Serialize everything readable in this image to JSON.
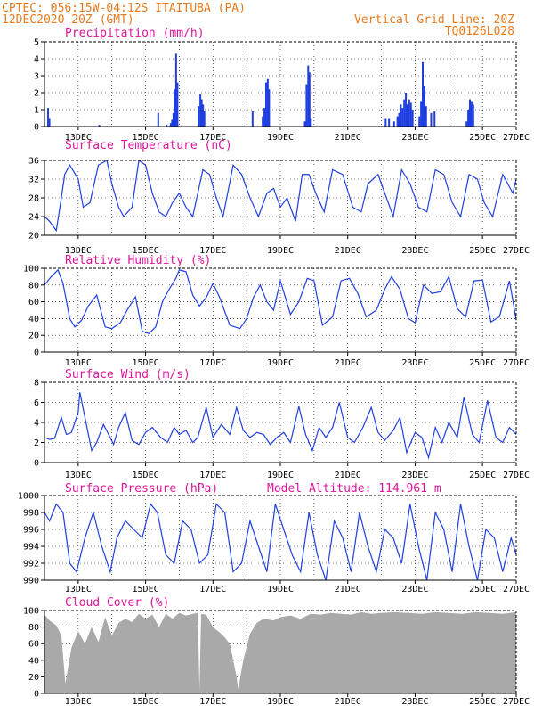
{
  "header": {
    "line1": "CPTEC:   056:15W-04:12S  ITAITUBA (PA)",
    "line2": "12DEC2020 20Z (GMT)",
    "grid_note": "Vertical Grid Line: 20Z",
    "code": "TQ0126L028"
  },
  "x_day_labels": [
    "13DEC",
    "15DEC",
    "17DEC",
    "19DEC",
    "21DEC",
    "23DEC",
    "25DEC",
    "27DEC"
  ],
  "chart_data": [
    {
      "type": "bar",
      "title": "Precipitation (mm/h)",
      "ylim": [
        0,
        5
      ],
      "yticks": [
        0,
        1,
        2,
        3,
        4,
        5
      ],
      "x_unit": "days since 12DEC2020 20Z",
      "bars": [
        [
          0.08,
          1.1
        ],
        [
          0.12,
          0.5
        ],
        [
          1.6,
          0.1
        ],
        [
          3.35,
          0.8
        ],
        [
          3.6,
          0.1
        ],
        [
          3.72,
          0.2
        ],
        [
          3.76,
          0.4
        ],
        [
          3.8,
          0.8
        ],
        [
          3.84,
          2.2
        ],
        [
          3.88,
          4.3
        ],
        [
          3.92,
          2.6
        ],
        [
          4.55,
          1.2
        ],
        [
          4.6,
          1.9
        ],
        [
          4.64,
          1.6
        ],
        [
          4.68,
          1.3
        ],
        [
          4.72,
          0.9
        ],
        [
          6.15,
          0.9
        ],
        [
          6.45,
          0.6
        ],
        [
          6.5,
          1.1
        ],
        [
          6.55,
          2.6
        ],
        [
          6.6,
          2.8
        ],
        [
          6.64,
          2.2
        ],
        [
          7.7,
          0.3
        ],
        [
          7.75,
          2.5
        ],
        [
          7.8,
          3.6
        ],
        [
          7.84,
          3.2
        ],
        [
          7.88,
          0.5
        ],
        [
          10.1,
          0.5
        ],
        [
          10.2,
          0.5
        ],
        [
          10.35,
          0.3
        ],
        [
          10.45,
          0.6
        ],
        [
          10.5,
          0.8
        ],
        [
          10.55,
          1.3
        ],
        [
          10.6,
          1.1
        ],
        [
          10.65,
          1.6
        ],
        [
          10.7,
          2.0
        ],
        [
          10.75,
          1.3
        ],
        [
          10.8,
          1.6
        ],
        [
          10.85,
          1.4
        ],
        [
          10.9,
          1.0
        ],
        [
          11.1,
          0.6
        ],
        [
          11.15,
          1.5
        ],
        [
          11.2,
          3.8
        ],
        [
          11.25,
          2.4
        ],
        [
          11.3,
          1.2
        ],
        [
          11.45,
          0.8
        ],
        [
          11.55,
          0.9
        ],
        [
          12.5,
          0.3
        ],
        [
          12.55,
          1.0
        ],
        [
          12.6,
          1.6
        ],
        [
          12.65,
          1.5
        ],
        [
          12.7,
          1.3
        ]
      ]
    },
    {
      "type": "line",
      "title": "Surface Temperature (nC)",
      "ylim": [
        20,
        36
      ],
      "yticks": [
        20,
        24,
        28,
        32,
        36
      ],
      "x": [
        0,
        0.15,
        0.35,
        0.5,
        0.6,
        0.75,
        1.0,
        1.15,
        1.35,
        1.6,
        1.85,
        2.0,
        2.2,
        2.35,
        2.6,
        2.8,
        3.0,
        3.2,
        3.4,
        3.6,
        3.8,
        4.0,
        4.2,
        4.4,
        4.7,
        4.9,
        5.1,
        5.3,
        5.6,
        5.85,
        6.1,
        6.35,
        6.6,
        6.8,
        7.0,
        7.2,
        7.45,
        7.65,
        7.85,
        8.05,
        8.3,
        8.55,
        8.85,
        9.15,
        9.4,
        9.6,
        9.9,
        10.1,
        10.35,
        10.6,
        10.85,
        11.1,
        11.35,
        11.6,
        11.85,
        12.1,
        12.35,
        12.6,
        12.85,
        13.05,
        13.3,
        13.6,
        13.9,
        14.0
      ],
      "values": [
        24,
        23,
        21,
        28,
        33,
        35,
        32,
        26,
        27,
        35,
        36,
        31,
        26,
        24,
        26,
        36,
        35,
        29,
        25,
        24,
        27,
        29,
        26,
        24,
        34,
        33,
        28,
        24,
        35,
        33,
        28,
        24,
        29,
        30,
        26,
        28,
        23,
        33,
        33,
        29,
        25,
        34,
        33,
        26,
        25,
        31,
        33,
        29,
        24,
        34,
        31,
        26,
        25,
        34,
        33,
        27,
        24,
        33,
        32,
        27,
        24,
        33,
        29,
        32
      ]
    },
    {
      "type": "line",
      "title": "Relative Humidity (%)",
      "ylim": [
        0,
        100
      ],
      "yticks": [
        0,
        20,
        40,
        60,
        80,
        100
      ],
      "x": [
        0,
        0.2,
        0.4,
        0.55,
        0.75,
        0.9,
        1.1,
        1.3,
        1.55,
        1.8,
        2.0,
        2.25,
        2.45,
        2.7,
        2.9,
        3.1,
        3.3,
        3.5,
        3.7,
        3.9,
        4.0,
        4.2,
        4.4,
        4.6,
        4.8,
        5.0,
        5.2,
        5.5,
        5.8,
        6.0,
        6.2,
        6.4,
        6.6,
        6.8,
        7.0,
        7.3,
        7.55,
        7.8,
        8.0,
        8.25,
        8.55,
        8.8,
        9.05,
        9.3,
        9.55,
        9.85,
        10.1,
        10.3,
        10.55,
        10.8,
        11.0,
        11.25,
        11.5,
        11.75,
        12.0,
        12.25,
        12.5,
        12.75,
        13.0,
        13.25,
        13.5,
        13.8,
        14.0
      ],
      "values": [
        80,
        90,
        98,
        82,
        40,
        30,
        38,
        55,
        68,
        30,
        28,
        35,
        50,
        66,
        25,
        22,
        30,
        60,
        75,
        88,
        98,
        96,
        68,
        55,
        65,
        82,
        65,
        32,
        28,
        40,
        65,
        80,
        60,
        50,
        85,
        45,
        60,
        88,
        85,
        32,
        42,
        85,
        88,
        70,
        42,
        50,
        75,
        90,
        75,
        40,
        35,
        80,
        70,
        72,
        90,
        52,
        42,
        85,
        86,
        36,
        42,
        85,
        38
      ]
    },
    {
      "type": "line",
      "title": "Surface Wind (m/s)",
      "ylim": [
        0,
        8
      ],
      "yticks": [
        0,
        2,
        4,
        6,
        8
      ],
      "x": [
        0,
        0.15,
        0.3,
        0.5,
        0.65,
        0.8,
        1.0,
        1.05,
        1.2,
        1.4,
        1.55,
        1.75,
        1.95,
        2.05,
        2.2,
        2.4,
        2.6,
        2.8,
        3.0,
        3.2,
        3.45,
        3.65,
        3.85,
        4.0,
        4.2,
        4.4,
        4.55,
        4.8,
        5.0,
        5.25,
        5.5,
        5.7,
        5.9,
        6.1,
        6.3,
        6.5,
        6.7,
        6.9,
        7.1,
        7.3,
        7.55,
        7.75,
        7.95,
        8.15,
        8.35,
        8.55,
        8.75,
        9.0,
        9.2,
        9.45,
        9.7,
        9.9,
        10.1,
        10.35,
        10.55,
        10.75,
        11.0,
        11.2,
        11.4,
        11.6,
        11.8,
        12.0,
        12.25,
        12.45,
        12.7,
        12.9,
        13.15,
        13.4,
        13.6,
        13.8,
        14.0
      ],
      "values": [
        2.5,
        2.3,
        2.4,
        4.5,
        2.8,
        3.0,
        5.0,
        7.0,
        4.5,
        1.2,
        2.0,
        3.8,
        2.5,
        1.8,
        3.5,
        5.0,
        2.2,
        1.8,
        3.0,
        3.5,
        2.5,
        2.0,
        3.5,
        2.8,
        3.2,
        2.0,
        2.5,
        5.5,
        2.5,
        3.8,
        2.8,
        5.5,
        3.2,
        2.5,
        3.0,
        2.8,
        1.8,
        2.5,
        3.0,
        2.0,
        5.6,
        2.8,
        1.2,
        3.5,
        2.5,
        3.5,
        6.0,
        2.5,
        2.0,
        3.5,
        5.5,
        3.0,
        2.2,
        3.2,
        4.5,
        1.0,
        3.0,
        2.5,
        0.5,
        3.5,
        2.0,
        4.0,
        2.5,
        6.5,
        2.8,
        2.0,
        6.2,
        2.5,
        2.0,
        3.5,
        2.8
      ]
    },
    {
      "type": "line",
      "title": "Surface Pressure (hPa)",
      "annotation": "Model Altitude: 114.961 m",
      "ylim": [
        990,
        1000
      ],
      "yticks": [
        990,
        992,
        994,
        996,
        998,
        1000
      ],
      "x": [
        0,
        0.15,
        0.35,
        0.55,
        0.75,
        0.95,
        1.2,
        1.45,
        1.7,
        1.95,
        2.15,
        2.4,
        2.65,
        2.9,
        3.15,
        3.35,
        3.6,
        3.85,
        4.1,
        4.35,
        4.6,
        4.85,
        5.1,
        5.35,
        5.6,
        5.85,
        6.1,
        6.35,
        6.6,
        6.85,
        7.1,
        7.35,
        7.6,
        7.85,
        8.1,
        8.35,
        8.6,
        8.85,
        9.1,
        9.35,
        9.6,
        9.85,
        10.1,
        10.35,
        10.6,
        10.85,
        11.1,
        11.35,
        11.6,
        11.85,
        12.1,
        12.35,
        12.6,
        12.85,
        13.1,
        13.35,
        13.6,
        13.85,
        14.0
      ],
      "values": [
        998,
        997,
        999,
        998,
        992,
        991,
        995,
        998,
        994,
        991,
        995,
        997,
        996,
        995,
        999,
        998,
        993,
        992,
        997,
        996,
        992,
        993,
        999,
        998,
        991,
        992,
        997,
        994,
        991,
        999,
        996,
        993,
        991,
        998,
        993,
        990,
        997,
        995,
        991,
        998,
        994,
        991,
        996,
        995,
        992,
        999,
        994,
        990,
        998,
        996,
        991,
        999,
        994,
        990,
        996,
        995,
        991,
        995,
        993
      ]
    },
    {
      "type": "area",
      "title": "Cloud Cover (%)",
      "ylim": [
        0,
        100
      ],
      "yticks": [
        0,
        20,
        40,
        60,
        80,
        100
      ],
      "x": [
        0,
        0.15,
        0.35,
        0.5,
        0.62,
        0.8,
        1.0,
        1.2,
        1.4,
        1.6,
        1.8,
        2.0,
        2.2,
        2.4,
        2.6,
        2.8,
        3.0,
        3.2,
        3.4,
        3.6,
        3.8,
        4.0,
        4.2,
        4.4,
        4.55,
        4.6,
        4.65,
        4.8,
        5.0,
        5.3,
        5.5,
        5.7,
        5.75,
        5.9,
        6.1,
        6.3,
        6.5,
        6.8,
        7.0,
        7.3,
        7.6,
        7.9,
        8.2,
        8.5,
        8.8,
        9.1,
        9.4,
        9.7,
        10.0,
        10.4,
        10.8,
        11.2,
        11.6,
        12.0,
        12.4,
        12.8,
        13.2,
        13.6,
        14.0
      ],
      "values": [
        95,
        88,
        82,
        70,
        12,
        55,
        75,
        60,
        80,
        62,
        92,
        70,
        85,
        90,
        86,
        96,
        90,
        95,
        80,
        96,
        90,
        97,
        94,
        96,
        97,
        5,
        96,
        95,
        80,
        70,
        60,
        20,
        5,
        40,
        72,
        85,
        90,
        88,
        92,
        94,
        90,
        96,
        95,
        97,
        96,
        95,
        98,
        96,
        97,
        98,
        97,
        96,
        98,
        97,
        96,
        98,
        97,
        96,
        98
      ]
    }
  ]
}
